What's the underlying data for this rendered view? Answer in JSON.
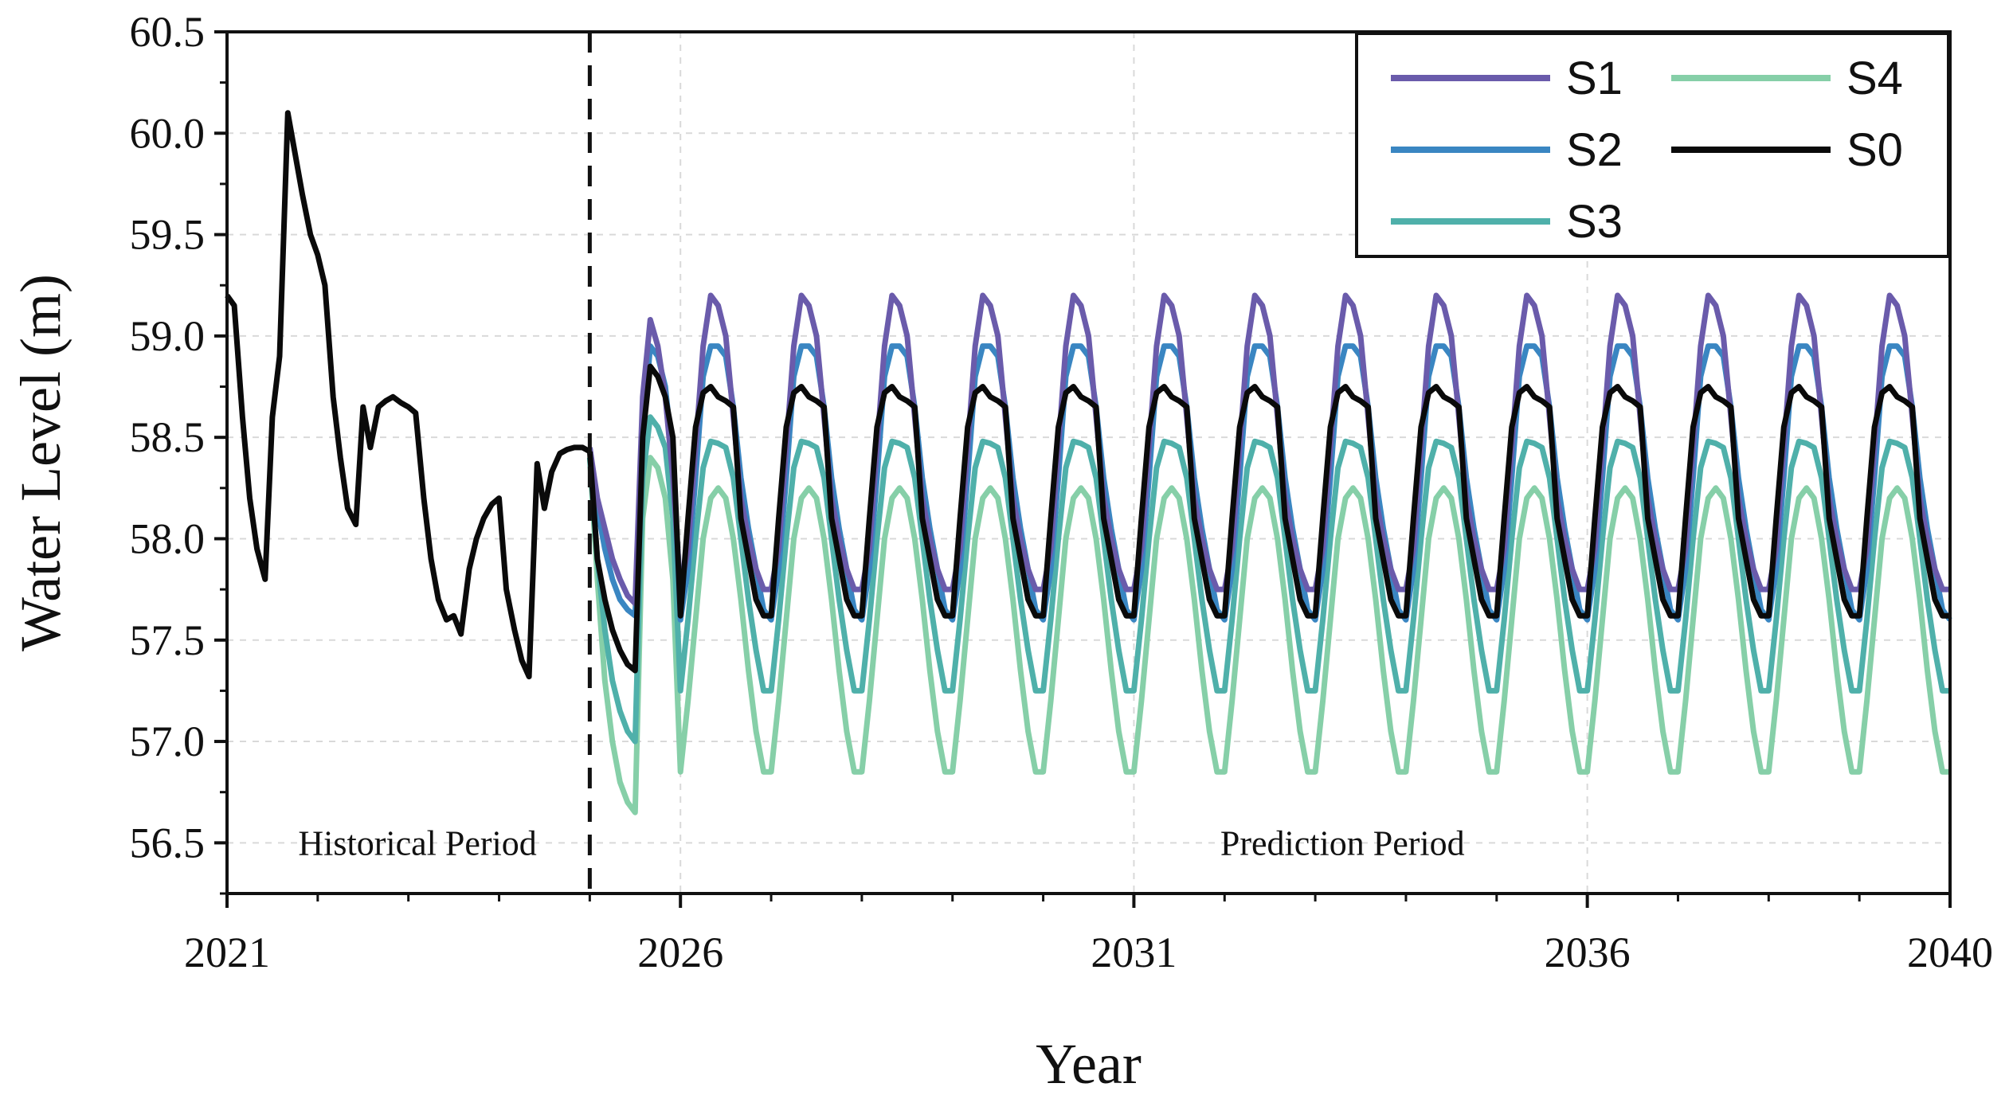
{
  "chart_data": {
    "type": "line",
    "xlabel": "Year",
    "ylabel": "Water Level (m)",
    "xlim": [
      2021,
      2040
    ],
    "ylim": [
      56.25,
      60.5
    ],
    "x_ticks": [
      2021,
      2026,
      2031,
      2036,
      2040
    ],
    "x_tick_labels": [
      "2021",
      "2026",
      "2031",
      "2036",
      "2040"
    ],
    "y_ticks": [
      56.5,
      57.0,
      57.5,
      58.0,
      58.5,
      59.0,
      59.5,
      60.0,
      60.5
    ],
    "y_tick_labels": [
      "56.5",
      "57.0",
      "57.5",
      "58.0",
      "58.5",
      "59.0",
      "59.5",
      "60.0",
      "60.5"
    ],
    "divider_year": 2025,
    "grid": true,
    "legend_position": "top-right",
    "annotations": [
      {
        "text": "Historical Period",
        "x": 2023.1,
        "y": 56.5
      },
      {
        "text": "Prediction Period",
        "x": 2033.3,
        "y": 56.5
      }
    ],
    "historical": {
      "name": "S0",
      "x": [
        2021.0,
        2021.08,
        2021.17,
        2021.25,
        2021.33,
        2021.42,
        2021.5,
        2021.58,
        2021.67,
        2021.75,
        2021.83,
        2021.92,
        2022.0,
        2022.08,
        2022.17,
        2022.25,
        2022.33,
        2022.42,
        2022.5,
        2022.58,
        2022.67,
        2022.75,
        2022.83,
        2022.92,
        2023.0,
        2023.08,
        2023.17,
        2023.25,
        2023.33,
        2023.42,
        2023.5,
        2023.58,
        2023.67,
        2023.75,
        2023.83,
        2023.92,
        2024.0,
        2024.08,
        2024.17,
        2024.25,
        2024.33,
        2024.42,
        2024.5,
        2024.58,
        2024.67,
        2024.75,
        2024.83,
        2024.92,
        2025.0
      ],
      "values": [
        59.2,
        59.15,
        58.6,
        58.2,
        57.95,
        57.8,
        58.6,
        58.9,
        60.1,
        59.9,
        59.7,
        59.5,
        59.4,
        59.25,
        58.7,
        58.4,
        58.15,
        58.07,
        58.65,
        58.45,
        58.65,
        58.68,
        58.7,
        58.67,
        58.65,
        58.62,
        58.2,
        57.9,
        57.7,
        57.6,
        57.62,
        57.53,
        57.85,
        58.0,
        58.1,
        58.17,
        58.2,
        57.75,
        57.55,
        57.4,
        57.32,
        58.37,
        58.15,
        58.33,
        58.42,
        58.44,
        58.45,
        58.45,
        58.43
      ]
    },
    "prediction_years": 15,
    "prediction_x_start": 2025.0,
    "series": [
      {
        "name": "S1",
        "color": "#6a5bab",
        "cycle": [
          57.75,
          57.95,
          58.45,
          58.95,
          59.2,
          59.15,
          59.0,
          58.6,
          58.2,
          58.0,
          57.85,
          57.75
        ],
        "first_year_cycle": [
          58.45,
          58.2,
          58.05,
          57.9,
          57.8,
          57.72,
          57.68,
          58.7,
          59.08,
          58.95,
          58.7,
          58.3
        ]
      },
      {
        "name": "S2",
        "color": "#3a86c2",
        "cycle": [
          57.6,
          57.85,
          58.3,
          58.8,
          58.95,
          58.95,
          58.9,
          58.65,
          58.3,
          58.05,
          57.85,
          57.65
        ],
        "first_year_cycle": [
          58.45,
          58.15,
          57.95,
          57.8,
          57.7,
          57.65,
          57.62,
          58.5,
          58.95,
          58.9,
          58.75,
          58.4
        ]
      },
      {
        "name": "S3",
        "color": "#4fb0aa",
        "cycle": [
          57.25,
          57.6,
          58.0,
          58.35,
          58.48,
          58.47,
          58.45,
          58.3,
          58.0,
          57.7,
          57.45,
          57.25
        ],
        "first_year_cycle": [
          58.4,
          57.9,
          57.55,
          57.3,
          57.15,
          57.05,
          57.0,
          58.3,
          58.6,
          58.55,
          58.45,
          58.1
        ]
      },
      {
        "name": "S4",
        "color": "#86cfa8",
        "cycle": [
          56.85,
          57.2,
          57.6,
          58.0,
          58.2,
          58.25,
          58.2,
          58.0,
          57.7,
          57.35,
          57.05,
          56.85
        ],
        "first_year_cycle": [
          58.4,
          57.8,
          57.3,
          57.0,
          56.8,
          56.7,
          56.65,
          58.1,
          58.4,
          58.35,
          58.2,
          57.8
        ]
      },
      {
        "name": "S0",
        "color": "#0a0a0a",
        "cycle": [
          57.62,
          58.1,
          58.55,
          58.72,
          58.75,
          58.7,
          58.68,
          58.65,
          58.1,
          57.9,
          57.7,
          57.62
        ],
        "first_year_cycle": [
          58.43,
          57.9,
          57.7,
          57.55,
          57.45,
          57.38,
          57.35,
          58.5,
          58.85,
          58.8,
          58.7,
          58.5
        ]
      }
    ],
    "legend": {
      "entries": [
        {
          "name": "S1",
          "color": "#6a5bab"
        },
        {
          "name": "S4",
          "color": "#86cfa8"
        },
        {
          "name": "S2",
          "color": "#3a86c2"
        },
        {
          "name": "S0",
          "color": "#0a0a0a"
        },
        {
          "name": "S3",
          "color": "#4fb0aa"
        }
      ]
    }
  }
}
